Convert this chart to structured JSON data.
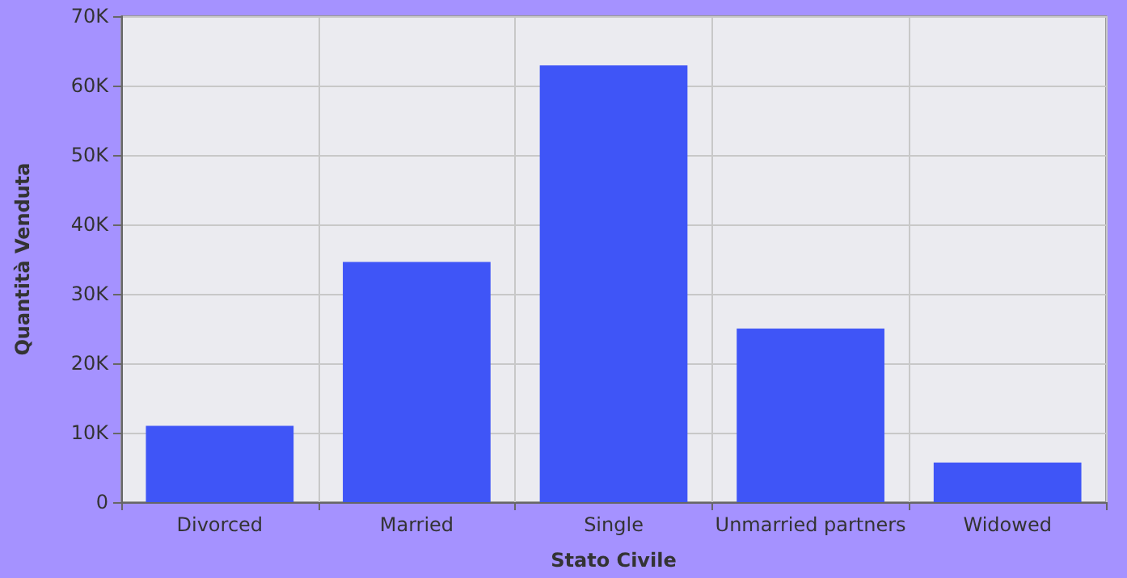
{
  "chart_data": {
    "type": "bar",
    "xlabel": "Stato Civile",
    "ylabel": "Quantità Venduta",
    "categories": [
      "Divorced",
      "Married",
      "Single",
      "Unmarried partners",
      "Widowed"
    ],
    "values": [
      11000,
      34600,
      62900,
      25000,
      5700
    ],
    "color": "#3f55f7",
    "ylim": [
      0,
      70000
    ],
    "yticks": [
      0,
      {
        "value": 10000,
        "label": "10K"
      },
      {
        "value": 20000,
        "label": "20K"
      },
      {
        "value": 30000,
        "label": "30K"
      },
      {
        "value": 40000,
        "label": "40K"
      },
      {
        "value": 50000,
        "label": "50K"
      },
      {
        "value": 60000,
        "label": "60K"
      },
      {
        "value": 70000,
        "label": "70K"
      }
    ],
    "grid": true
  }
}
